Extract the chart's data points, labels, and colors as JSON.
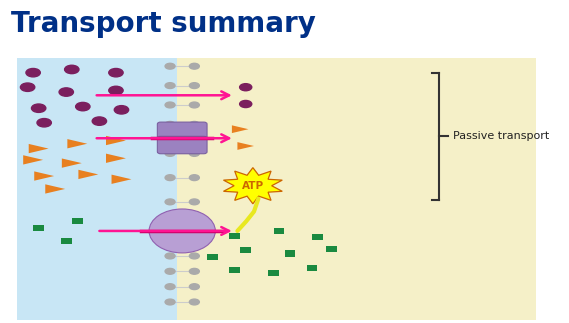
{
  "title": "Transport summary",
  "title_color": "#003087",
  "title_fontsize": 20,
  "bg_left_color": "#c8e6f5",
  "bg_right_color": "#f5f0c8",
  "phospholipid_head_color": "#aaaaaa",
  "channel_protein_color": "#9b82c0",
  "pump_protein_color": "#b89fd4",
  "arrow_color": "#ff1493",
  "passive_label": "Passive transport",
  "bracket_color": "#333333",
  "purple_dot_color": "#7b1f5e",
  "orange_tri_color": "#e88020",
  "green_sq_color": "#1a8a40",
  "atp_color": "#ffff00",
  "atp_text_color": "#cc6600",
  "atp_border_color": "#cc6600"
}
